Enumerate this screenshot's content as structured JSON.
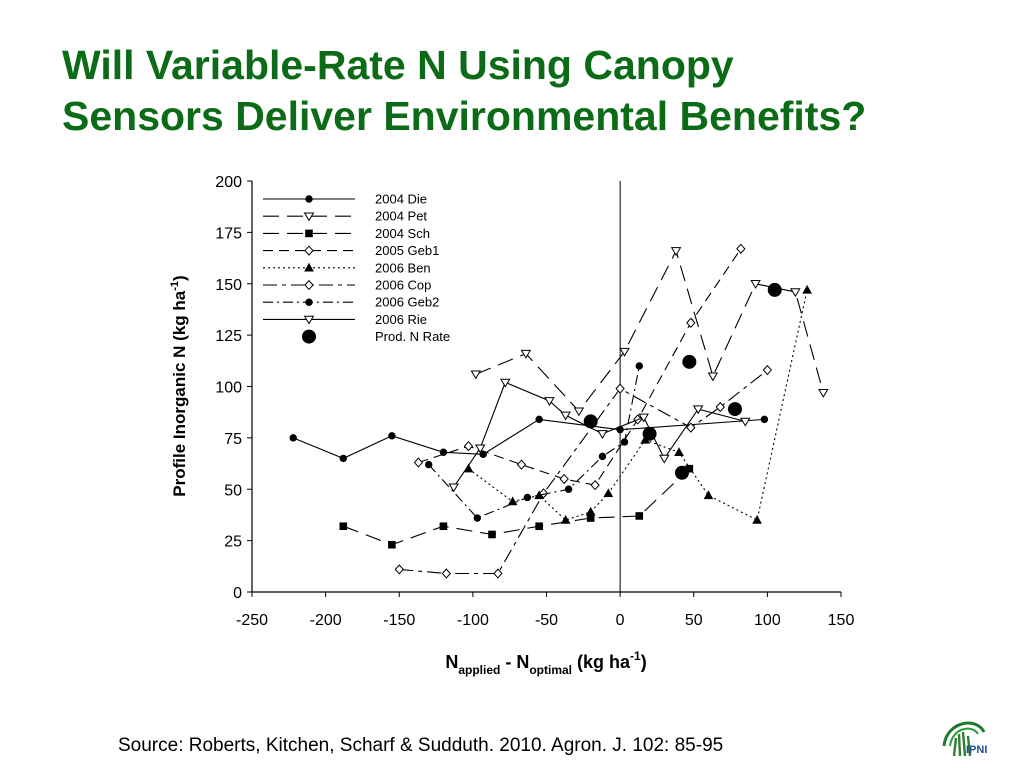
{
  "slide": {
    "title_line1": "Will Variable-Rate N Using Canopy",
    "title_line2": "Sensors Deliver Environmental Benefits?",
    "source": "Source: Roberts, Kitchen, Scharf & Sudduth. 2010. Agron. J. 102: 85-95",
    "logo_text": "IPNI",
    "logo_icon": "ipni-plant-logo"
  },
  "chart_data": {
    "type": "line",
    "ylabel": "Profile Inorganic N (kg ha-1)",
    "ylabel_parts": [
      "Profile Inorganic N (kg ha",
      "-1",
      ")"
    ],
    "xlabel_parts": [
      "N",
      "applied",
      " - N",
      "optimal",
      " (kg ha",
      "-1",
      ")"
    ],
    "xlim": [
      -250,
      150
    ],
    "ylim": [
      0,
      200
    ],
    "xticks": [
      -250,
      -200,
      -150,
      -100,
      -50,
      0,
      50,
      100,
      150
    ],
    "yticks": [
      0,
      25,
      50,
      75,
      100,
      125,
      150,
      175,
      200
    ],
    "grid": false,
    "legend_position": "top-left",
    "reference_line_x": 0,
    "series": [
      {
        "name": "2004 Die",
        "marker": "circle-filled",
        "dash": "solid",
        "x": [
          -222,
          -188,
          -155,
          -120,
          -93,
          -55,
          0,
          98
        ],
        "y": [
          75,
          65,
          76,
          68,
          67,
          84,
          79,
          84
        ]
      },
      {
        "name": "2004 Pet",
        "marker": "triangle-down-open",
        "dash": "long",
        "x": [
          -98,
          -64,
          -28,
          3,
          38,
          63,
          92,
          119,
          138
        ],
        "y": [
          106,
          116,
          88,
          117,
          166,
          105,
          150,
          146,
          97
        ]
      },
      {
        "name": "2004 Sch",
        "marker": "square-filled",
        "dash": "long",
        "x": [
          -188,
          -155,
          -120,
          -87,
          -55,
          -20,
          13,
          47
        ],
        "y": [
          32,
          23,
          32,
          28,
          32,
          36,
          37,
          60
        ]
      },
      {
        "name": "2005 Geb1",
        "marker": "diamond-open",
        "dash": "medium",
        "x": [
          -137,
          -103,
          -67,
          -38,
          -17,
          12,
          48,
          82
        ],
        "y": [
          63,
          71,
          62,
          55,
          52,
          84,
          131,
          167
        ]
      },
      {
        "name": "2006 Ben",
        "marker": "triangle-up-filled",
        "dash": "dotted",
        "x": [
          -103,
          -73,
          -55,
          -37,
          -20,
          -8,
          17,
          40,
          60,
          93,
          127
        ],
        "y": [
          60,
          44,
          47,
          35,
          39,
          48,
          74,
          68,
          47,
          35,
          147
        ]
      },
      {
        "name": "2006 Cop",
        "marker": "diamond-open",
        "dash": "longshort",
        "x": [
          -150,
          -118,
          -83,
          -52,
          0,
          48,
          68,
          100
        ],
        "y": [
          11,
          9,
          9,
          48,
          99,
          80,
          90,
          108
        ]
      },
      {
        "name": "2006 Geb2",
        "marker": "circle-filled",
        "dash": "dashdot",
        "x": [
          -130,
          -97,
          -63,
          -35,
          -12,
          3,
          13
        ],
        "y": [
          62,
          36,
          46,
          50,
          66,
          73,
          110
        ]
      },
      {
        "name": "2006 Rie",
        "marker": "triangle-down-open",
        "dash": "solid",
        "x": [
          -113,
          -95,
          -78,
          -48,
          -37,
          -12,
          16,
          30,
          53,
          85
        ],
        "y": [
          51,
          70,
          102,
          93,
          86,
          77,
          85,
          65,
          89,
          83
        ]
      },
      {
        "name": "Prod. N Rate",
        "marker": "big-circle",
        "dash": "none",
        "x": [
          -20,
          20,
          42,
          47,
          78,
          105
        ],
        "y": [
          83,
          77,
          58,
          112,
          89,
          147
        ]
      }
    ]
  }
}
